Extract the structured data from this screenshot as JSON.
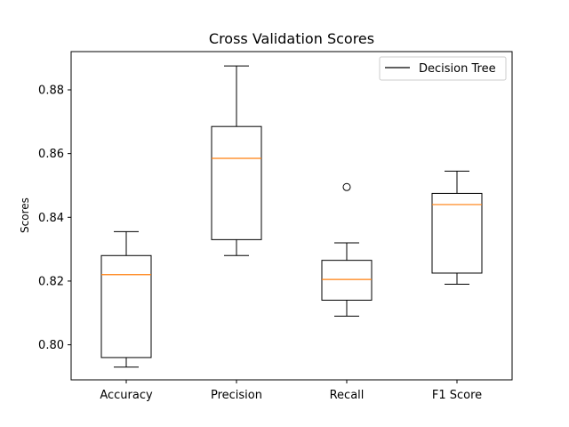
{
  "chart_data": {
    "type": "box",
    "title": "Cross Validation Scores",
    "xlabel": "",
    "ylabel": "Scores",
    "ylim": [
      0.789,
      0.892
    ],
    "yticks": [
      "0.80",
      "0.82",
      "0.84",
      "0.86",
      "0.88"
    ],
    "categories": [
      "Accuracy",
      "Precision",
      "Recall",
      "F1 Score"
    ],
    "series": [
      {
        "name": "Decision Tree",
        "boxes": [
          {
            "whislo": 0.793,
            "q1": 0.796,
            "med": 0.822,
            "q3": 0.828,
            "whishi": 0.8355,
            "fliers": []
          },
          {
            "whislo": 0.828,
            "q1": 0.833,
            "med": 0.8585,
            "q3": 0.8685,
            "whishi": 0.8875,
            "fliers": []
          },
          {
            "whislo": 0.809,
            "q1": 0.814,
            "med": 0.8205,
            "q3": 0.8265,
            "whishi": 0.832,
            "fliers": [
              0.8495
            ]
          },
          {
            "whislo": 0.819,
            "q1": 0.8225,
            "med": 0.844,
            "q3": 0.8475,
            "whishi": 0.8545,
            "fliers": []
          }
        ]
      }
    ],
    "grid": false,
    "legend": "top-right",
    "colors": {
      "box": "#000000",
      "median": "#ff7f0e",
      "flier": "#000000"
    }
  }
}
